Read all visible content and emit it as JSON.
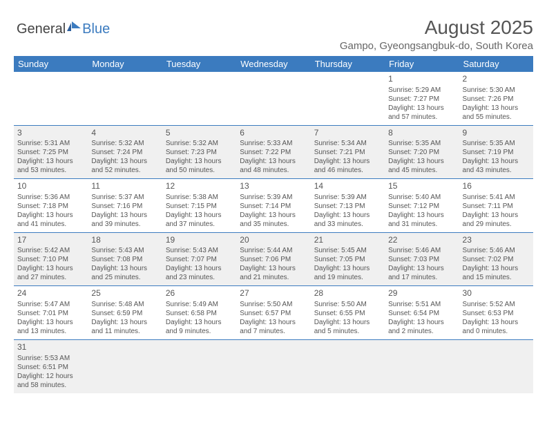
{
  "logo": {
    "text1": "General",
    "text2": "Blue"
  },
  "title": "August 2025",
  "subtitle": "Gampo, Gyeongsangbuk-do, South Korea",
  "colors": {
    "headerBg": "#3b7bbf",
    "headerText": "#ffffff",
    "text": "#555555",
    "altRow": "#f0f0f0",
    "border": "#3b7bbf"
  },
  "dayNames": [
    "Sunday",
    "Monday",
    "Tuesday",
    "Wednesday",
    "Thursday",
    "Friday",
    "Saturday"
  ],
  "weeks": [
    [
      null,
      null,
      null,
      null,
      null,
      {
        "n": "1",
        "sr": "Sunrise: 5:29 AM",
        "ss": "Sunset: 7:27 PM",
        "d1": "Daylight: 13 hours",
        "d2": "and 57 minutes."
      },
      {
        "n": "2",
        "sr": "Sunrise: 5:30 AM",
        "ss": "Sunset: 7:26 PM",
        "d1": "Daylight: 13 hours",
        "d2": "and 55 minutes."
      }
    ],
    [
      {
        "n": "3",
        "sr": "Sunrise: 5:31 AM",
        "ss": "Sunset: 7:25 PM",
        "d1": "Daylight: 13 hours",
        "d2": "and 53 minutes."
      },
      {
        "n": "4",
        "sr": "Sunrise: 5:32 AM",
        "ss": "Sunset: 7:24 PM",
        "d1": "Daylight: 13 hours",
        "d2": "and 52 minutes."
      },
      {
        "n": "5",
        "sr": "Sunrise: 5:32 AM",
        "ss": "Sunset: 7:23 PM",
        "d1": "Daylight: 13 hours",
        "d2": "and 50 minutes."
      },
      {
        "n": "6",
        "sr": "Sunrise: 5:33 AM",
        "ss": "Sunset: 7:22 PM",
        "d1": "Daylight: 13 hours",
        "d2": "and 48 minutes."
      },
      {
        "n": "7",
        "sr": "Sunrise: 5:34 AM",
        "ss": "Sunset: 7:21 PM",
        "d1": "Daylight: 13 hours",
        "d2": "and 46 minutes."
      },
      {
        "n": "8",
        "sr": "Sunrise: 5:35 AM",
        "ss": "Sunset: 7:20 PM",
        "d1": "Daylight: 13 hours",
        "d2": "and 45 minutes."
      },
      {
        "n": "9",
        "sr": "Sunrise: 5:35 AM",
        "ss": "Sunset: 7:19 PM",
        "d1": "Daylight: 13 hours",
        "d2": "and 43 minutes."
      }
    ],
    [
      {
        "n": "10",
        "sr": "Sunrise: 5:36 AM",
        "ss": "Sunset: 7:18 PM",
        "d1": "Daylight: 13 hours",
        "d2": "and 41 minutes."
      },
      {
        "n": "11",
        "sr": "Sunrise: 5:37 AM",
        "ss": "Sunset: 7:16 PM",
        "d1": "Daylight: 13 hours",
        "d2": "and 39 minutes."
      },
      {
        "n": "12",
        "sr": "Sunrise: 5:38 AM",
        "ss": "Sunset: 7:15 PM",
        "d1": "Daylight: 13 hours",
        "d2": "and 37 minutes."
      },
      {
        "n": "13",
        "sr": "Sunrise: 5:39 AM",
        "ss": "Sunset: 7:14 PM",
        "d1": "Daylight: 13 hours",
        "d2": "and 35 minutes."
      },
      {
        "n": "14",
        "sr": "Sunrise: 5:39 AM",
        "ss": "Sunset: 7:13 PM",
        "d1": "Daylight: 13 hours",
        "d2": "and 33 minutes."
      },
      {
        "n": "15",
        "sr": "Sunrise: 5:40 AM",
        "ss": "Sunset: 7:12 PM",
        "d1": "Daylight: 13 hours",
        "d2": "and 31 minutes."
      },
      {
        "n": "16",
        "sr": "Sunrise: 5:41 AM",
        "ss": "Sunset: 7:11 PM",
        "d1": "Daylight: 13 hours",
        "d2": "and 29 minutes."
      }
    ],
    [
      {
        "n": "17",
        "sr": "Sunrise: 5:42 AM",
        "ss": "Sunset: 7:10 PM",
        "d1": "Daylight: 13 hours",
        "d2": "and 27 minutes."
      },
      {
        "n": "18",
        "sr": "Sunrise: 5:43 AM",
        "ss": "Sunset: 7:08 PM",
        "d1": "Daylight: 13 hours",
        "d2": "and 25 minutes."
      },
      {
        "n": "19",
        "sr": "Sunrise: 5:43 AM",
        "ss": "Sunset: 7:07 PM",
        "d1": "Daylight: 13 hours",
        "d2": "and 23 minutes."
      },
      {
        "n": "20",
        "sr": "Sunrise: 5:44 AM",
        "ss": "Sunset: 7:06 PM",
        "d1": "Daylight: 13 hours",
        "d2": "and 21 minutes."
      },
      {
        "n": "21",
        "sr": "Sunrise: 5:45 AM",
        "ss": "Sunset: 7:05 PM",
        "d1": "Daylight: 13 hours",
        "d2": "and 19 minutes."
      },
      {
        "n": "22",
        "sr": "Sunrise: 5:46 AM",
        "ss": "Sunset: 7:03 PM",
        "d1": "Daylight: 13 hours",
        "d2": "and 17 minutes."
      },
      {
        "n": "23",
        "sr": "Sunrise: 5:46 AM",
        "ss": "Sunset: 7:02 PM",
        "d1": "Daylight: 13 hours",
        "d2": "and 15 minutes."
      }
    ],
    [
      {
        "n": "24",
        "sr": "Sunrise: 5:47 AM",
        "ss": "Sunset: 7:01 PM",
        "d1": "Daylight: 13 hours",
        "d2": "and 13 minutes."
      },
      {
        "n": "25",
        "sr": "Sunrise: 5:48 AM",
        "ss": "Sunset: 6:59 PM",
        "d1": "Daylight: 13 hours",
        "d2": "and 11 minutes."
      },
      {
        "n": "26",
        "sr": "Sunrise: 5:49 AM",
        "ss": "Sunset: 6:58 PM",
        "d1": "Daylight: 13 hours",
        "d2": "and 9 minutes."
      },
      {
        "n": "27",
        "sr": "Sunrise: 5:50 AM",
        "ss": "Sunset: 6:57 PM",
        "d1": "Daylight: 13 hours",
        "d2": "and 7 minutes."
      },
      {
        "n": "28",
        "sr": "Sunrise: 5:50 AM",
        "ss": "Sunset: 6:55 PM",
        "d1": "Daylight: 13 hours",
        "d2": "and 5 minutes."
      },
      {
        "n": "29",
        "sr": "Sunrise: 5:51 AM",
        "ss": "Sunset: 6:54 PM",
        "d1": "Daylight: 13 hours",
        "d2": "and 2 minutes."
      },
      {
        "n": "30",
        "sr": "Sunrise: 5:52 AM",
        "ss": "Sunset: 6:53 PM",
        "d1": "Daylight: 13 hours",
        "d2": "and 0 minutes."
      }
    ],
    [
      {
        "n": "31",
        "sr": "Sunrise: 5:53 AM",
        "ss": "Sunset: 6:51 PM",
        "d1": "Daylight: 12 hours",
        "d2": "and 58 minutes."
      },
      null,
      null,
      null,
      null,
      null,
      null
    ]
  ]
}
